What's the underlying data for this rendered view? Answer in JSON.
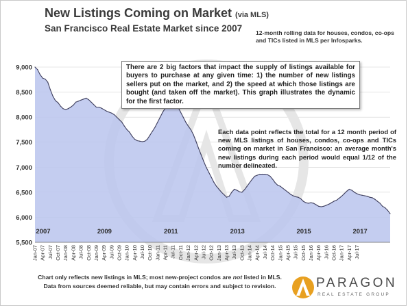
{
  "header": {
    "title": "New Listings Coming on Market",
    "title_suffix": "(via MLS)",
    "subtitle": "San Francisco Real Estate Market since 2007",
    "note": "12-month rolling data for houses, condos, co-ops and TICs listed in MLS per Infosparks."
  },
  "annotations": {
    "box": "There are 2 big factors that impact the supply of listings available for buyers to purchase at any given time: 1) the number of new listings sellers put on the market, and 2) the speed at which those listings are bought (and taken off the market). This graph illustrates the dynamic for the first factor.",
    "explain": "Each data point reflects the total for a 12 month period of new MLS listings of houses, condos, co-ops and TICs coming on market in San Francisco: an average month's new listings during each period would equal 1/12 of the number delineated."
  },
  "footer": {
    "line1_a": "Chart only reflects new listings in MLS; most new-project condos are ",
    "line1_em": "not",
    "line1_b": " listed in MLS.",
    "line2": "Data from sources deemed reliable, but may contain errors and subject to revision."
  },
  "logo": {
    "name": "PARAGON",
    "tagline": "REAL ESTATE GROUP"
  },
  "colors": {
    "fill": "#bcc6ee",
    "line": "#3d3d5c",
    "grid": "#d0d0d0",
    "watermark": "#e6e6e6",
    "accent": "#e8a020"
  },
  "chart_data": {
    "type": "area",
    "ylim": [
      5500,
      9000
    ],
    "y_ticks": [
      "9,000",
      "8,500",
      "8,000",
      "7,500",
      "7,000",
      "6,500",
      "6,000",
      "5,500"
    ],
    "x_ticks": [
      "Jan-07",
      "Apr-07",
      "Jul-07",
      "Oct-07",
      "Jan-08",
      "Apr-08",
      "Jul-08",
      "Oct-08",
      "Jan-09",
      "Apr-09",
      "Jul-09",
      "Oct-09",
      "Jan-10",
      "Apr-10",
      "Jul-10",
      "Oct-10",
      "Jan-11",
      "Apr-11",
      "Jul-11",
      "Oct-11",
      "Jan-12",
      "Apr-12",
      "Jul-12",
      "Oct-12",
      "Jan-13",
      "Apr-13",
      "Jul-13",
      "Oct-13",
      "Jan-14",
      "Apr-14",
      "Jul-14",
      "Oct-14",
      "Jan-15",
      "Apr-15",
      "Jul-15",
      "Oct-15",
      "Jan-16",
      "Apr-16",
      "Jul-16",
      "Oct-16",
      "Jan-17",
      "Apr-17",
      "Jul-17"
    ],
    "year_labels": [
      "2007",
      "2009",
      "2011",
      "2013",
      "2015",
      "2017"
    ],
    "year_label_positions": [
      0,
      24,
      50,
      76,
      102,
      124
    ],
    "series": [
      {
        "values": [
          9000,
          8950,
          8850,
          8780,
          8760,
          8700,
          8550,
          8420,
          8330,
          8290,
          8220,
          8170,
          8150,
          8170,
          8200,
          8240,
          8300,
          8320,
          8340,
          8360,
          8380,
          8350,
          8300,
          8250,
          8200,
          8200,
          8180,
          8150,
          8120,
          8100,
          8080,
          8050,
          8000,
          7950,
          7900,
          7820,
          7750,
          7700,
          7620,
          7560,
          7530,
          7520,
          7510,
          7520,
          7560,
          7640,
          7720,
          7800,
          7900,
          8000,
          8100,
          8180,
          8230,
          8250,
          8250,
          8240,
          8200,
          8100,
          8000,
          7900,
          7820,
          7750,
          7650,
          7520,
          7380,
          7250,
          7120,
          7000,
          6900,
          6800,
          6700,
          6620,
          6560,
          6500,
          6450,
          6400,
          6420,
          6500,
          6560,
          6540,
          6510,
          6500,
          6550,
          6620,
          6690,
          6760,
          6820,
          6840,
          6860,
          6860,
          6860,
          6850,
          6820,
          6760,
          6690,
          6640,
          6620,
          6580,
          6540,
          6500,
          6460,
          6430,
          6410,
          6400,
          6370,
          6320,
          6290,
          6280,
          6290,
          6280,
          6250,
          6220,
          6210,
          6220,
          6240,
          6260,
          6290,
          6320,
          6340,
          6380,
          6420,
          6470,
          6520,
          6560,
          6540,
          6500,
          6470,
          6450,
          6440,
          6430,
          6420,
          6400,
          6390,
          6360,
          6320,
          6280,
          6220,
          6190,
          6140,
          6070
        ]
      }
    ]
  }
}
